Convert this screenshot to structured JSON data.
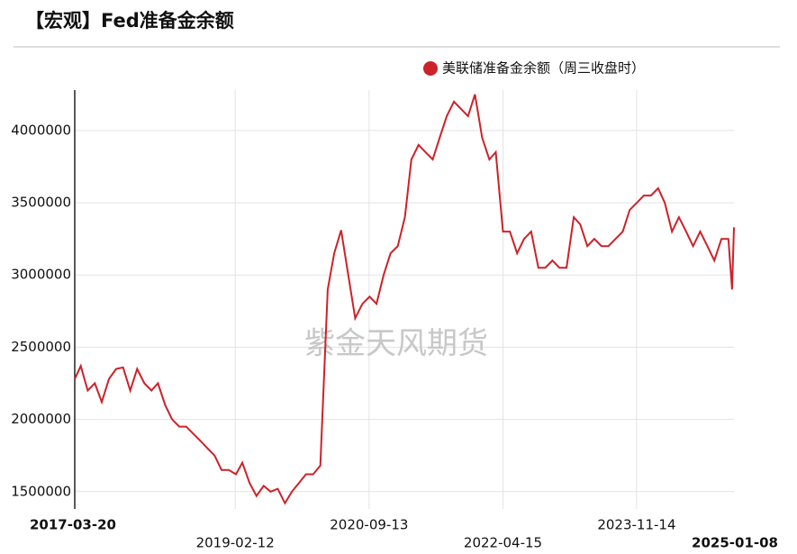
{
  "chart_data": {
    "type": "line",
    "title": "【宏观】Fed准备金余额",
    "watermark": "紫金天风期货",
    "x": [
      "2017-03-20",
      "2017-04-15",
      "2017-05-15",
      "2017-06-15",
      "2017-07-15",
      "2017-08-15",
      "2017-09-15",
      "2017-10-15",
      "2017-11-15",
      "2017-12-15",
      "2018-01-15",
      "2018-02-15",
      "2018-03-15",
      "2018-04-15",
      "2018-05-15",
      "2018-06-15",
      "2018-07-15",
      "2018-08-15",
      "2018-09-15",
      "2018-10-15",
      "2018-11-15",
      "2018-12-15",
      "2019-01-15",
      "2019-02-15",
      "2019-03-15",
      "2019-04-15",
      "2019-05-15",
      "2019-06-15",
      "2019-07-15",
      "2019-08-15",
      "2019-09-15",
      "2019-10-15",
      "2019-11-15",
      "2019-12-15",
      "2020-01-15",
      "2020-02-15",
      "2020-03-18",
      "2020-04-15",
      "2020-05-15",
      "2020-06-15",
      "2020-07-15",
      "2020-08-15",
      "2020-09-15",
      "2020-10-15",
      "2020-11-15",
      "2020-12-15",
      "2021-01-15",
      "2021-02-15",
      "2021-03-15",
      "2021-04-15",
      "2021-05-15",
      "2021-06-15",
      "2021-07-15",
      "2021-08-15",
      "2021-09-15",
      "2021-10-15",
      "2021-11-15",
      "2021-12-15",
      "2022-01-15",
      "2022-02-15",
      "2022-03-15",
      "2022-04-15",
      "2022-05-15",
      "2022-06-15",
      "2022-07-15",
      "2022-08-15",
      "2022-09-15",
      "2022-10-15",
      "2022-11-15",
      "2022-12-15",
      "2023-01-15",
      "2023-02-15",
      "2023-03-15",
      "2023-04-15",
      "2023-05-15",
      "2023-06-15",
      "2023-07-15",
      "2023-08-15",
      "2023-09-15",
      "2023-10-15",
      "2023-11-15",
      "2023-12-15",
      "2024-01-15",
      "2024-02-15",
      "2024-03-15",
      "2024-04-15",
      "2024-05-15",
      "2024-06-15",
      "2024-07-15",
      "2024-08-15",
      "2024-09-15",
      "2024-10-15",
      "2024-11-15",
      "2024-12-15",
      "2024-12-31",
      "2025-01-08"
    ],
    "series": [
      {
        "name": "美联储准备金余额（周三收盘时）",
        "color": "#cc2229",
        "values": [
          2280000,
          2370000,
          2200000,
          2250000,
          2120000,
          2280000,
          2350000,
          2360000,
          2200000,
          2350000,
          2250000,
          2200000,
          2250000,
          2100000,
          2000000,
          1950000,
          1950000,
          1900000,
          1850000,
          1800000,
          1750000,
          1650000,
          1650000,
          1620000,
          1700000,
          1560000,
          1470000,
          1540000,
          1500000,
          1520000,
          1420000,
          1500000,
          1560000,
          1620000,
          1620000,
          1680000,
          2900000,
          3150000,
          3310000,
          3000000,
          2700000,
          2800000,
          2850000,
          2800000,
          3000000,
          3150000,
          3200000,
          3400000,
          3800000,
          3900000,
          3850000,
          3800000,
          3950000,
          4100000,
          4200000,
          4150000,
          4100000,
          4250000,
          3950000,
          3800000,
          3850000,
          3300000,
          3300000,
          3150000,
          3250000,
          3300000,
          3050000,
          3050000,
          3100000,
          3050000,
          3050000,
          3400000,
          3350000,
          3200000,
          3250000,
          3200000,
          3200000,
          3250000,
          3300000,
          3450000,
          3500000,
          3550000,
          3550000,
          3600000,
          3500000,
          3300000,
          3400000,
          3300000,
          3200000,
          3300000,
          3200000,
          3100000,
          3250000,
          3250000,
          2900000,
          3330000
        ]
      }
    ],
    "xlim": [
      "2017-03-20",
      "2025-01-08"
    ],
    "xticks": [
      "2017-03-20",
      "2019-02-12",
      "2020-09-13",
      "2022-04-15",
      "2023-11-14",
      "2025-01-08"
    ],
    "ylim": [
      1380000,
      4280000
    ],
    "yticks": [
      1500000,
      2000000,
      2500000,
      3000000,
      3500000,
      4000000
    ],
    "grid": true,
    "legend": "top-right"
  }
}
